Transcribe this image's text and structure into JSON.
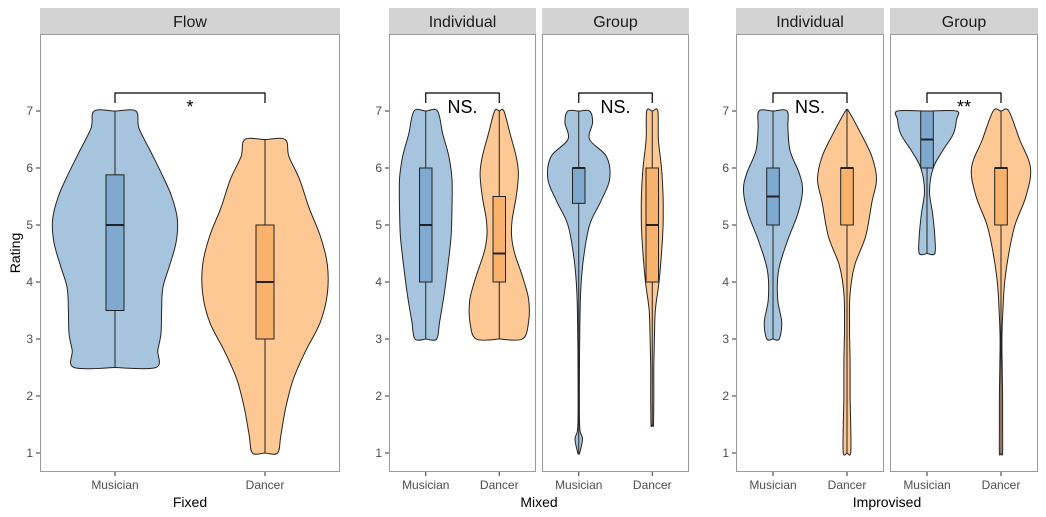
{
  "chart_data": {
    "type": "violin",
    "ylabel": "Rating",
    "ylim": [
      1,
      7
    ],
    "y_ticks": [
      1,
      2,
      3,
      4,
      5,
      6,
      7
    ],
    "categories": [
      "Musician",
      "Dancer"
    ],
    "colors": {
      "Musician": {
        "fill": "#a7c4de",
        "box": "#7fa9cf"
      },
      "Dancer": {
        "fill": "#fdc894",
        "box": "#f9b26c"
      },
      "strip": "#d3d3d3",
      "panel_border": "#9a9a9a",
      "outline": "#222222"
    },
    "groups": [
      {
        "xlabel": "Fixed",
        "panels": [
          {
            "strip": "Flow",
            "significance": "*",
            "violins": [
              {
                "category": "Musician",
                "min": 2.5,
                "max": 7,
                "q1": 3.5,
                "median": 5,
                "q3": 5.88,
                "density": [
                  [
                    2.5,
                    0.65
                  ],
                  [
                    2.8,
                    0.68
                  ],
                  [
                    3.1,
                    0.73
                  ],
                  [
                    3.5,
                    0.74
                  ],
                  [
                    3.9,
                    0.76
                  ],
                  [
                    4.3,
                    0.87
                  ],
                  [
                    4.7,
                    0.97
                  ],
                  [
                    5.1,
                    0.99
                  ],
                  [
                    5.5,
                    0.9
                  ],
                  [
                    5.9,
                    0.74
                  ],
                  [
                    6.3,
                    0.56
                  ],
                  [
                    6.7,
                    0.38
                  ],
                  [
                    7,
                    0.33
                  ]
                ]
              },
              {
                "category": "Dancer",
                "min": 1,
                "max": 6.5,
                "q1": 3,
                "median": 4,
                "q3": 5,
                "density": [
                  [
                    1,
                    0.2
                  ],
                  [
                    1.3,
                    0.25
                  ],
                  [
                    1.8,
                    0.33
                  ],
                  [
                    2.3,
                    0.45
                  ],
                  [
                    2.8,
                    0.65
                  ],
                  [
                    3.3,
                    0.88
                  ],
                  [
                    3.8,
                    0.99
                  ],
                  [
                    4.3,
                    0.99
                  ],
                  [
                    4.8,
                    0.88
                  ],
                  [
                    5.3,
                    0.7
                  ],
                  [
                    5.8,
                    0.55
                  ],
                  [
                    6.2,
                    0.38
                  ],
                  [
                    6.5,
                    0.32
                  ]
                ]
              }
            ]
          }
        ]
      },
      {
        "xlabel": "Mixed",
        "panels": [
          {
            "strip": "Individual",
            "significance": "NS.",
            "violins": [
              {
                "category": "Musician",
                "min": 3,
                "max": 7,
                "q1": 4,
                "median": 5,
                "q3": 6,
                "density": [
                  [
                    3,
                    0.35
                  ],
                  [
                    3.3,
                    0.45
                  ],
                  [
                    3.8,
                    0.6
                  ],
                  [
                    4.3,
                    0.72
                  ],
                  [
                    4.8,
                    0.82
                  ],
                  [
                    5.3,
                    0.85
                  ],
                  [
                    5.8,
                    0.85
                  ],
                  [
                    6.2,
                    0.75
                  ],
                  [
                    6.6,
                    0.55
                  ],
                  [
                    7,
                    0.38
                  ]
                ]
              },
              {
                "category": "Dancer",
                "min": 3,
                "max": 7,
                "q1": 4,
                "median": 4.5,
                "q3": 5.5,
                "density": [
                  [
                    3,
                    0.75
                  ],
                  [
                    3.3,
                    0.95
                  ],
                  [
                    3.7,
                    0.95
                  ],
                  [
                    4.1,
                    0.75
                  ],
                  [
                    4.5,
                    0.5
                  ],
                  [
                    4.8,
                    0.4
                  ],
                  [
                    5.1,
                    0.42
                  ],
                  [
                    5.5,
                    0.55
                  ],
                  [
                    5.9,
                    0.62
                  ],
                  [
                    6.2,
                    0.55
                  ],
                  [
                    6.6,
                    0.35
                  ],
                  [
                    7,
                    0.15
                  ]
                ]
              }
            ]
          },
          {
            "strip": "Group",
            "significance": "NS.",
            "violins": [
              {
                "category": "Musician",
                "min": 1,
                "max": 7,
                "q1": 5.38,
                "median": 6,
                "q3": 6,
                "density": [
                  [
                    1,
                    0.03
                  ],
                  [
                    1.25,
                    0.12
                  ],
                  [
                    1.45,
                    0.03
                  ],
                  [
                    2.2,
                    0.02
                  ],
                  [
                    3,
                    0.03
                  ],
                  [
                    3.8,
                    0.06
                  ],
                  [
                    4.4,
                    0.15
                  ],
                  [
                    5,
                    0.35
                  ],
                  [
                    5.4,
                    0.7
                  ],
                  [
                    5.8,
                    1.0
                  ],
                  [
                    6.2,
                    0.9
                  ],
                  [
                    6.5,
                    0.35
                  ],
                  [
                    6.8,
                    0.45
                  ],
                  [
                    7,
                    0.35
                  ]
                ]
              },
              {
                "category": "Dancer",
                "min": 1.5,
                "max": 7,
                "q1": 4,
                "median": 5,
                "q3": 6,
                "density": [
                  [
                    1.5,
                    0.04
                  ],
                  [
                    2,
                    0.05
                  ],
                  [
                    2.5,
                    0.05
                  ],
                  [
                    3,
                    0.07
                  ],
                  [
                    3.5,
                    0.1
                  ],
                  [
                    4,
                    0.22
                  ],
                  [
                    4.5,
                    0.3
                  ],
                  [
                    5,
                    0.35
                  ],
                  [
                    5.5,
                    0.35
                  ],
                  [
                    6,
                    0.3
                  ],
                  [
                    6.5,
                    0.2
                  ],
                  [
                    7,
                    0.18
                  ]
                ]
              }
            ]
          }
        ]
      },
      {
        "xlabel": "Improvised",
        "panels": [
          {
            "strip": "Individual",
            "significance": "NS.",
            "violins": [
              {
                "category": "Musician",
                "min": 3,
                "max": 7,
                "q1": 5,
                "median": 5.5,
                "q3": 6,
                "density": [
                  [
                    3,
                    0.2
                  ],
                  [
                    3.3,
                    0.28
                  ],
                  [
                    3.7,
                    0.15
                  ],
                  [
                    4.2,
                    0.18
                  ],
                  [
                    4.7,
                    0.45
                  ],
                  [
                    5.2,
                    0.8
                  ],
                  [
                    5.6,
                    0.95
                  ],
                  [
                    5.9,
                    0.85
                  ],
                  [
                    6.3,
                    0.55
                  ],
                  [
                    6.7,
                    0.48
                  ],
                  [
                    7,
                    0.45
                  ]
                ]
              },
              {
                "category": "Dancer",
                "min": 1,
                "max": 7,
                "q1": 5,
                "median": 6,
                "q3": 6,
                "density": [
                  [
                    1,
                    0.12
                  ],
                  [
                    1.5,
                    0.12
                  ],
                  [
                    2,
                    0.1
                  ],
                  [
                    2.6,
                    0.1
                  ],
                  [
                    3.2,
                    0.08
                  ],
                  [
                    3.8,
                    0.1
                  ],
                  [
                    4.3,
                    0.25
                  ],
                  [
                    4.8,
                    0.6
                  ],
                  [
                    5.4,
                    0.8
                  ],
                  [
                    5.8,
                    0.95
                  ],
                  [
                    6.2,
                    0.8
                  ],
                  [
                    6.6,
                    0.45
                  ],
                  [
                    7,
                    0.05
                  ]
                ]
              }
            ]
          },
          {
            "strip": "Group",
            "significance": "**",
            "violins": [
              {
                "category": "Musician",
                "min": 4.5,
                "max": 7,
                "q1": 6,
                "median": 6.5,
                "q3": 7,
                "density": [
                  [
                    4.5,
                    0.25
                  ],
                  [
                    4.8,
                    0.25
                  ],
                  [
                    5.2,
                    0.18
                  ],
                  [
                    5.6,
                    0.08
                  ],
                  [
                    6,
                    0.2
                  ],
                  [
                    6.3,
                    0.5
                  ],
                  [
                    6.6,
                    0.85
                  ],
                  [
                    6.85,
                    0.95
                  ],
                  [
                    7,
                    0.95
                  ]
                ]
              },
              {
                "category": "Dancer",
                "min": 1,
                "max": 7,
                "q1": 5,
                "median": 6,
                "q3": 6,
                "density": [
                  [
                    1,
                    0.05
                  ],
                  [
                    1.5,
                    0.05
                  ],
                  [
                    2,
                    0.05
                  ],
                  [
                    2.5,
                    0.04
                  ],
                  [
                    3,
                    0.03
                  ],
                  [
                    3.5,
                    0.06
                  ],
                  [
                    4,
                    0.12
                  ],
                  [
                    4.5,
                    0.25
                  ],
                  [
                    5,
                    0.45
                  ],
                  [
                    5.5,
                    0.8
                  ],
                  [
                    6,
                    0.95
                  ],
                  [
                    6.5,
                    0.6
                  ],
                  [
                    7,
                    0.25
                  ]
                ]
              }
            ]
          }
        ]
      }
    ]
  }
}
